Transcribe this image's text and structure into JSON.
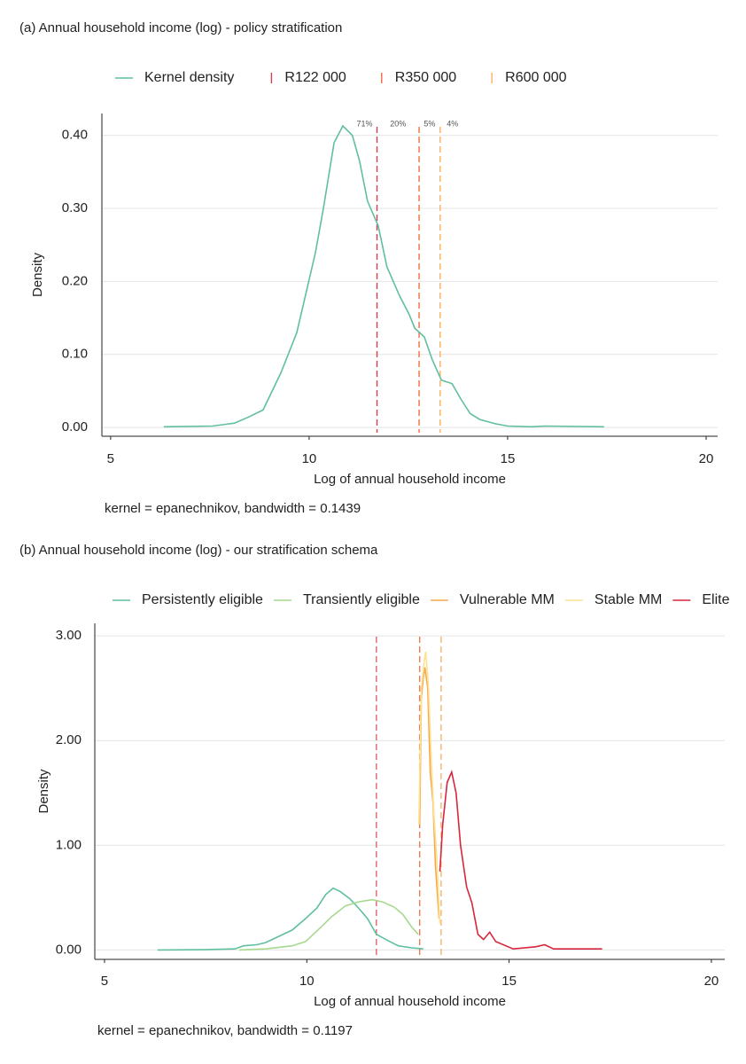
{
  "chart_data": [
    {
      "type": "line",
      "title": "(a) Annual household income (log) - policy stratification",
      "xlabel": "Log of annual household income",
      "ylabel": "Density",
      "note": "kernel = epanechnikov, bandwidth = 0.1439",
      "xlim": [
        4.78,
        20.29
      ],
      "xticks": [
        5,
        10,
        15,
        20
      ],
      "ylim": [
        -0.012,
        0.43
      ],
      "yticks": [
        {
          "value": 0,
          "label": "0.00"
        },
        {
          "value": 0.1,
          "label": "0.10"
        },
        {
          "value": 0.2,
          "label": "0.20"
        },
        {
          "value": 0.3,
          "label": "0.30"
        },
        {
          "value": 0.4,
          "label": "0.40"
        }
      ],
      "grid": true,
      "series": [
        {
          "name": "Kernel density",
          "color": "#5fbf9f",
          "x": [
            6.34,
            7.57,
            8.12,
            8.5,
            8.84,
            9.29,
            9.69,
            10.16,
            10.36,
            10.63,
            10.85,
            11.09,
            11.27,
            11.47,
            11.74,
            11.96,
            12.28,
            12.52,
            12.66,
            12.9,
            13.1,
            13.33,
            13.6,
            13.82,
            14.06,
            14.3,
            14.7,
            15.0,
            15.6,
            15.94,
            17.43
          ],
          "values": [
            0.001,
            0.002,
            0.006,
            0.015,
            0.024,
            0.075,
            0.13,
            0.24,
            0.3,
            0.39,
            0.413,
            0.4,
            0.365,
            0.31,
            0.276,
            0.22,
            0.18,
            0.155,
            0.136,
            0.124,
            0.093,
            0.065,
            0.06,
            0.039,
            0.019,
            0.011,
            0.005,
            0.002,
            0.001,
            0.002,
            0.001
          ]
        }
      ],
      "vlines": [
        {
          "name": "R122 000",
          "x": 11.71,
          "color": "#d53e4f"
        },
        {
          "name": "R350 000",
          "x": 12.77,
          "color": "#f46d43"
        },
        {
          "name": "R600 000",
          "x": 13.3,
          "color": "#fdae61"
        }
      ],
      "annotations": [
        "71%",
        "20%",
        "5%",
        "4%"
      ]
    },
    {
      "type": "line",
      "title": "(b) Annual household income (log) - our stratification schema",
      "xlabel": "Log of annual household income",
      "ylabel": "Density",
      "note": "kernel = epanechnikov, bandwidth = 0.1197",
      "xlim": [
        4.76,
        20.33
      ],
      "xticks": [
        5,
        10,
        15,
        20
      ],
      "ylim": [
        -0.09,
        3.12
      ],
      "yticks": [
        {
          "value": 0,
          "label": "0.00"
        },
        {
          "value": 1,
          "label": "1.00"
        },
        {
          "value": 2,
          "label": "2.00"
        },
        {
          "value": 3,
          "label": "3.00"
        }
      ],
      "grid": true,
      "series": [
        {
          "name": "Persistently eligible",
          "color": "#5fbf9f",
          "x": [
            6.31,
            7.45,
            8.22,
            8.44,
            8.76,
            8.98,
            9.31,
            9.64,
            9.97,
            10.25,
            10.47,
            10.65,
            10.82,
            11.06,
            11.28,
            11.5,
            11.72,
            12.0,
            12.26,
            12.59,
            12.88
          ],
          "values": [
            0.0,
            0.002,
            0.01,
            0.04,
            0.05,
            0.07,
            0.13,
            0.19,
            0.3,
            0.4,
            0.53,
            0.59,
            0.56,
            0.49,
            0.4,
            0.3,
            0.15,
            0.09,
            0.04,
            0.02,
            0.01
          ]
        },
        {
          "name": "Transiently eligible",
          "color": "#a6d98f",
          "x": [
            8.33,
            8.98,
            9.64,
            9.97,
            10.3,
            10.62,
            10.95,
            11.28,
            11.61,
            11.87,
            12.16,
            12.37,
            12.59,
            12.75
          ],
          "values": [
            0.0,
            0.01,
            0.04,
            0.08,
            0.2,
            0.32,
            0.42,
            0.46,
            0.48,
            0.46,
            0.41,
            0.34,
            0.22,
            0.15
          ]
        },
        {
          "name": "Vulnerable MM",
          "color": "#f5a94e",
          "x": [
            12.79,
            12.83,
            12.88,
            12.92,
            12.99,
            13.05,
            13.12,
            13.18,
            13.27
          ],
          "values": [
            1.2,
            2.4,
            2.6,
            2.7,
            2.5,
            1.7,
            1.4,
            0.8,
            0.3
          ]
        },
        {
          "name": "Stable MM",
          "color": "#fde28f",
          "x": [
            12.77,
            12.83,
            12.9,
            12.94,
            13.01,
            13.08,
            13.14,
            13.21,
            13.29
          ],
          "values": [
            1.2,
            2.5,
            2.75,
            2.85,
            2.5,
            1.8,
            1.3,
            0.9,
            0.25
          ]
        },
        {
          "name": "Elite",
          "color": "#d7263d",
          "x": [
            13.29,
            13.36,
            13.47,
            13.58,
            13.69,
            13.8,
            13.95,
            14.08,
            14.23,
            14.37,
            14.52,
            14.67,
            15.1,
            15.66,
            15.88,
            16.1,
            17.3
          ],
          "values": [
            0.75,
            1.2,
            1.6,
            1.7,
            1.5,
            1.0,
            0.6,
            0.45,
            0.15,
            0.1,
            0.17,
            0.08,
            0.01,
            0.03,
            0.05,
            0.01,
            0.01
          ]
        }
      ],
      "vlines": [
        {
          "x": 11.72,
          "color": "#e0606e"
        },
        {
          "x": 12.79,
          "color": "#f07a55"
        },
        {
          "x": 13.32,
          "color": "#f5b570"
        }
      ]
    }
  ]
}
